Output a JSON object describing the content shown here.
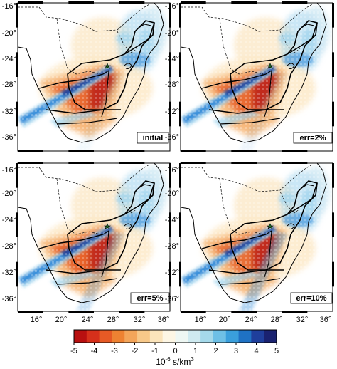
{
  "panels": [
    {
      "label": "initial"
    },
    {
      "label": "err=2%"
    },
    {
      "label": "err=5%"
    },
    {
      "label": "err=10%"
    }
  ],
  "lat_ticks": [
    "-16°",
    "-20°",
    "-24°",
    "-28°",
    "-32°",
    "-36°"
  ],
  "lon_ticks": [
    "16°",
    "20°",
    "24°",
    "28°",
    "32°",
    "36°"
  ],
  "colorbar": {
    "ticks": [
      "-5",
      "-4",
      "-3",
      "-2",
      "-1",
      "0",
      "1",
      "2",
      "3",
      "4",
      "5"
    ],
    "unit_base": "10",
    "unit_exp": "-6",
    "unit_mid": " s/km",
    "unit_exp2": "3",
    "colors": [
      "#b81010",
      "#d6301b",
      "#e65a25",
      "#ee8232",
      "#f3a55a",
      "#f7c889",
      "#fbe4bb",
      "#fdf6e4",
      "#eef7f3",
      "#cfeaf0",
      "#a5d9ea",
      "#6ec0e6",
      "#3a9fdc",
      "#1f72c4",
      "#1f3f9c",
      "#1a2270"
    ]
  },
  "colors": {
    "warm_dark": "#c0281a",
    "warm_mid": "#e8642a",
    "warm_light": "#f6b577",
    "cool_dark": "#1f3b96",
    "cool_mid": "#2c8ad8",
    "cool_light": "#9fd4ee"
  }
}
